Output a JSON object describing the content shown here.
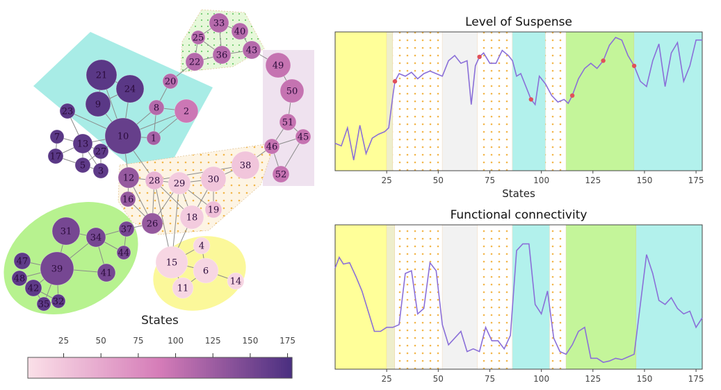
{
  "chart_data": [
    {
      "type": "network",
      "legend_title": "States",
      "colorbar_ticks": [
        25,
        50,
        75,
        100,
        125,
        150,
        175
      ],
      "colorbar_range": [
        1,
        178
      ],
      "colors": {
        "low": "#fbe0e8",
        "mid": "#d57cb8",
        "high": "#4a2f80"
      },
      "groups": [
        {
          "id": "teal",
          "color": "#a8ece6",
          "style": "solid"
        },
        {
          "id": "green-dots",
          "color": "#d9f5c4",
          "style": "dotted"
        },
        {
          "id": "lavender",
          "color": "#efe2ef",
          "style": "solid"
        },
        {
          "id": "orange-dots",
          "color": "#fdf1dc",
          "style": "dotted"
        },
        {
          "id": "green",
          "color": "#b7f28f",
          "style": "solid"
        },
        {
          "id": "yellow",
          "color": "#fbf89a",
          "style": "solid"
        }
      ],
      "nodes": [
        {
          "id": "1",
          "state": 120
        },
        {
          "id": "2",
          "state": 95
        },
        {
          "id": "3",
          "state": 165
        },
        {
          "id": "4",
          "state": 10
        },
        {
          "id": "5",
          "state": 165
        },
        {
          "id": "6",
          "state": 10
        },
        {
          "id": "7",
          "state": 168
        },
        {
          "id": "8",
          "state": 110
        },
        {
          "id": "9",
          "state": 168
        },
        {
          "id": "10",
          "state": 160
        },
        {
          "id": "11",
          "state": 10
        },
        {
          "id": "12",
          "state": 130
        },
        {
          "id": "13",
          "state": 165
        },
        {
          "id": "14",
          "state": 10
        },
        {
          "id": "15",
          "state": 10
        },
        {
          "id": "16",
          "state": 130
        },
        {
          "id": "17",
          "state": 168
        },
        {
          "id": "18",
          "state": 20
        },
        {
          "id": "19",
          "state": 30
        },
        {
          "id": "20",
          "state": 110
        },
        {
          "id": "21",
          "state": 168
        },
        {
          "id": "22",
          "state": 110
        },
        {
          "id": "23",
          "state": 168
        },
        {
          "id": "24",
          "state": 168
        },
        {
          "id": "25",
          "state": 110
        },
        {
          "id": "26",
          "state": 130
        },
        {
          "id": "27",
          "state": 165
        },
        {
          "id": "28",
          "state": 40
        },
        {
          "id": "29",
          "state": 20
        },
        {
          "id": "30",
          "state": 25
        },
        {
          "id": "31",
          "state": 150
        },
        {
          "id": "32",
          "state": 165
        },
        {
          "id": "33",
          "state": 110
        },
        {
          "id": "34",
          "state": 150
        },
        {
          "id": "35",
          "state": 165
        },
        {
          "id": "36",
          "state": 110
        },
        {
          "id": "37",
          "state": 150
        },
        {
          "id": "38",
          "state": 25
        },
        {
          "id": "39",
          "state": 150
        },
        {
          "id": "40",
          "state": 110
        },
        {
          "id": "41",
          "state": 150
        },
        {
          "id": "42",
          "state": 165
        },
        {
          "id": "43",
          "state": 110
        },
        {
          "id": "44",
          "state": 150
        },
        {
          "id": "45",
          "state": 100
        },
        {
          "id": "46",
          "state": 100
        },
        {
          "id": "47",
          "state": 165
        },
        {
          "id": "48",
          "state": 165
        },
        {
          "id": "49",
          "state": 100
        },
        {
          "id": "50",
          "state": 100
        },
        {
          "id": "51",
          "state": 100
        },
        {
          "id": "52",
          "state": 100
        }
      ],
      "edges": [
        [
          "10",
          "21"
        ],
        [
          "10",
          "9"
        ],
        [
          "10",
          "24"
        ],
        [
          "10",
          "23"
        ],
        [
          "10",
          "8"
        ],
        [
          "10",
          "1"
        ],
        [
          "10",
          "13"
        ],
        [
          "10",
          "27"
        ],
        [
          "10",
          "12"
        ],
        [
          "10",
          "28"
        ],
        [
          "10",
          "2"
        ],
        [
          "9",
          "21"
        ],
        [
          "9",
          "24"
        ],
        [
          "21",
          "24"
        ],
        [
          "8",
          "2"
        ],
        [
          "8",
          "20"
        ],
        [
          "8",
          "1"
        ],
        [
          "1",
          "2"
        ],
        [
          "20",
          "22"
        ],
        [
          "13",
          "7"
        ],
        [
          "13",
          "17"
        ],
        [
          "13",
          "5"
        ],
        [
          "13",
          "27"
        ],
        [
          "13",
          "3"
        ],
        [
          "13",
          "23"
        ],
        [
          "7",
          "17"
        ],
        [
          "5",
          "27"
        ],
        [
          "5",
          "3"
        ],
        [
          "27",
          "3"
        ],
        [
          "17",
          "5"
        ],
        [
          "22",
          "25"
        ],
        [
          "22",
          "36"
        ],
        [
          "25",
          "33"
        ],
        [
          "33",
          "40"
        ],
        [
          "33",
          "36"
        ],
        [
          "36",
          "43"
        ],
        [
          "40",
          "43"
        ],
        [
          "25",
          "36"
        ],
        [
          "43",
          "49"
        ],
        [
          "49",
          "50"
        ],
        [
          "50",
          "51"
        ],
        [
          "51",
          "46"
        ],
        [
          "51",
          "45"
        ],
        [
          "46",
          "45"
        ],
        [
          "46",
          "52"
        ],
        [
          "45",
          "52"
        ],
        [
          "46",
          "38"
        ],
        [
          "12",
          "28"
        ],
        [
          "12",
          "16"
        ],
        [
          "12",
          "26"
        ],
        [
          "16",
          "26"
        ],
        [
          "28",
          "29"
        ],
        [
          "28",
          "26"
        ],
        [
          "28",
          "18"
        ],
        [
          "28",
          "15"
        ],
        [
          "29",
          "30"
        ],
        [
          "29",
          "18"
        ],
        [
          "29",
          "26"
        ],
        [
          "29",
          "19"
        ],
        [
          "30",
          "19"
        ],
        [
          "30",
          "38"
        ],
        [
          "30",
          "18"
        ],
        [
          "18",
          "15"
        ],
        [
          "29",
          "15"
        ],
        [
          "28",
          "38"
        ],
        [
          "15",
          "4"
        ],
        [
          "15",
          "6"
        ],
        [
          "15",
          "11"
        ],
        [
          "6",
          "4"
        ],
        [
          "6",
          "11"
        ],
        [
          "6",
          "14"
        ],
        [
          "31",
          "34"
        ],
        [
          "31",
          "39"
        ],
        [
          "34",
          "37"
        ],
        [
          "34",
          "44"
        ],
        [
          "34",
          "41"
        ],
        [
          "37",
          "44"
        ],
        [
          "34",
          "39"
        ],
        [
          "39",
          "47"
        ],
        [
          "39",
          "48"
        ],
        [
          "39",
          "42"
        ],
        [
          "39",
          "35"
        ],
        [
          "39",
          "32"
        ],
        [
          "39",
          "41"
        ],
        [
          "42",
          "35"
        ],
        [
          "42",
          "32"
        ],
        [
          "48",
          "42"
        ],
        [
          "35",
          "32"
        ],
        [
          "37",
          "26"
        ]
      ]
    },
    {
      "type": "line",
      "title": "Level of Suspense",
      "xlabel": "States",
      "xlim": [
        0,
        178
      ],
      "xticks": [
        25,
        50,
        75,
        100,
        125,
        150,
        175
      ],
      "line_color": "#8a6fd8",
      "marker_color": "#e0505a",
      "markers_x": [
        29,
        70,
        95,
        115,
        130,
        145
      ],
      "regions": [
        {
          "from": 0,
          "to": 25,
          "color": "#ffff99",
          "pattern": "solid"
        },
        {
          "from": 25,
          "to": 28,
          "color": "#eeeecc",
          "pattern": "solid"
        },
        {
          "from": 28,
          "to": 52,
          "color": "#ffffff",
          "pattern": "dots"
        },
        {
          "from": 52,
          "to": 69,
          "color": "#f2f2f2",
          "pattern": "solid"
        },
        {
          "from": 69,
          "to": 86,
          "color": "#ffffff",
          "pattern": "dots"
        },
        {
          "from": 86,
          "to": 102,
          "color": "#b2f1ec",
          "pattern": "solid"
        },
        {
          "from": 102,
          "to": 112,
          "color": "#ffffff",
          "pattern": "dots"
        },
        {
          "from": 112,
          "to": 145,
          "color": "#c4f59a",
          "pattern": "solid"
        },
        {
          "from": 145,
          "to": 178,
          "color": "#b2f1ec",
          "pattern": "solid"
        }
      ],
      "x": [
        0,
        3,
        6,
        9,
        12,
        15,
        18,
        21,
        24,
        26,
        28,
        29,
        31,
        34,
        37,
        40,
        43,
        46,
        49,
        52,
        55,
        58,
        61,
        64,
        66,
        68,
        70,
        72,
        75,
        78,
        81,
        84,
        86,
        88,
        90,
        93,
        95,
        97,
        99,
        102,
        105,
        108,
        111,
        113,
        115,
        118,
        121,
        124,
        127,
        130,
        133,
        136,
        139,
        142,
        145,
        148,
        151,
        154,
        157,
        160,
        163,
        166,
        169,
        172,
        175,
        178
      ],
      "y": [
        0.18,
        0.16,
        0.3,
        0.05,
        0.32,
        0.1,
        0.22,
        0.25,
        0.27,
        0.3,
        0.55,
        0.66,
        0.72,
        0.7,
        0.73,
        0.68,
        0.72,
        0.74,
        0.72,
        0.7,
        0.82,
        0.86,
        0.8,
        0.82,
        0.48,
        0.78,
        0.85,
        0.88,
        0.8,
        0.8,
        0.9,
        0.86,
        0.82,
        0.7,
        0.72,
        0.6,
        0.52,
        0.48,
        0.7,
        0.64,
        0.55,
        0.5,
        0.52,
        0.49,
        0.55,
        0.68,
        0.76,
        0.8,
        0.76,
        0.82,
        0.94,
        1.0,
        0.98,
        0.86,
        0.78,
        0.66,
        0.62,
        0.82,
        0.95,
        0.62,
        0.88,
        0.96,
        0.66,
        0.78,
        0.98,
        0.98
      ]
    },
    {
      "type": "line",
      "title": "Functional connectivity",
      "xlim": [
        0,
        178
      ],
      "xticks": [
        25,
        50,
        75,
        100,
        125,
        150,
        175
      ],
      "line_color": "#8a6fd8",
      "regions": [
        {
          "from": 0,
          "to": 25,
          "color": "#ffff99",
          "pattern": "solid"
        },
        {
          "from": 25,
          "to": 29,
          "color": "#eeeecc",
          "pattern": "solid"
        },
        {
          "from": 29,
          "to": 52,
          "color": "#ffffff",
          "pattern": "dots"
        },
        {
          "from": 52,
          "to": 69,
          "color": "#f2f2f2",
          "pattern": "solid"
        },
        {
          "from": 69,
          "to": 86,
          "color": "#ffffff",
          "pattern": "dots"
        },
        {
          "from": 86,
          "to": 104,
          "color": "#b2f1ec",
          "pattern": "solid"
        },
        {
          "from": 104,
          "to": 112,
          "color": "#ffffff",
          "pattern": "dots"
        },
        {
          "from": 112,
          "to": 146,
          "color": "#c4f59a",
          "pattern": "solid"
        },
        {
          "from": 146,
          "to": 178,
          "color": "#b2f1ec",
          "pattern": "solid"
        }
      ],
      "x": [
        0,
        2,
        4,
        7,
        10,
        13,
        16,
        19,
        22,
        25,
        28,
        31,
        34,
        37,
        40,
        43,
        46,
        49,
        52,
        55,
        58,
        61,
        64,
        67,
        70,
        73,
        76,
        79,
        82,
        85,
        88,
        91,
        94,
        97,
        100,
        103,
        106,
        109,
        112,
        115,
        118,
        121,
        124,
        127,
        130,
        133,
        136,
        139,
        142,
        145,
        148,
        151,
        154,
        157,
        160,
        163,
        166,
        169,
        172,
        175,
        178
      ],
      "y": [
        0.72,
        0.8,
        0.75,
        0.76,
        0.66,
        0.55,
        0.4,
        0.25,
        0.25,
        0.28,
        0.28,
        0.3,
        0.68,
        0.7,
        0.38,
        0.42,
        0.76,
        0.7,
        0.3,
        0.15,
        0.2,
        0.25,
        0.1,
        0.12,
        0.1,
        0.28,
        0.18,
        0.18,
        0.12,
        0.22,
        0.85,
        0.9,
        0.9,
        0.45,
        0.38,
        0.55,
        0.2,
        0.1,
        0.08,
        0.15,
        0.25,
        0.28,
        0.05,
        0.05,
        0.02,
        0.03,
        0.05,
        0.04,
        0.06,
        0.08,
        0.45,
        0.82,
        0.68,
        0.48,
        0.45,
        0.5,
        0.42,
        0.38,
        0.4,
        0.28,
        0.35
      ]
    }
  ]
}
